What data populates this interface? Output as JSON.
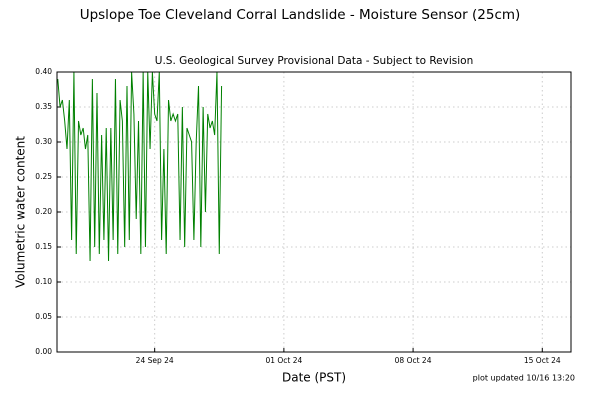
{
  "chart_data": {
    "type": "line",
    "title": "Upslope Toe Cleveland Corral Landslide - Moisture Sensor (25cm)",
    "subtitle": "U.S. Geological Survey Provisional Data - Subject to Revision",
    "xlabel": "Date (PST)",
    "ylabel": "Volumetric water content",
    "note": "plot updated 10/16 13:20",
    "grid": true,
    "xlim": [
      "2024-09-18T17:00",
      "2024-10-16T13:20"
    ],
    "xticks": [
      {
        "value": "2024-09-24",
        "label": "24 Sep 24"
      },
      {
        "value": "2024-10-01",
        "label": "01 Oct 24"
      },
      {
        "value": "2024-10-08",
        "label": "08 Oct 24"
      },
      {
        "value": "2024-10-15",
        "label": "15 Oct 24"
      }
    ],
    "ylim": [
      0,
      0.4
    ],
    "yticks": [
      {
        "value": 0,
        "label": "0.00"
      },
      {
        "value": 0.05,
        "label": "0.05"
      },
      {
        "value": 0.1,
        "label": "0.10"
      },
      {
        "value": 0.15,
        "label": "0.15"
      },
      {
        "value": 0.2,
        "label": "0.20"
      },
      {
        "value": 0.25,
        "label": "0.25"
      },
      {
        "value": 0.3,
        "label": "0.30"
      },
      {
        "value": 0.35,
        "label": "0.35"
      },
      {
        "value": 0.4,
        "label": "0.40"
      }
    ],
    "x": [
      "2024-09-18T18:00",
      "2024-09-18T21:00",
      "2024-09-19T00:00",
      "2024-09-19T03:00",
      "2024-09-19T06:00",
      "2024-09-19T09:00",
      "2024-09-19T12:00",
      "2024-09-19T15:00",
      "2024-09-19T18:00",
      "2024-09-19T21:00",
      "2024-09-20T00:00",
      "2024-09-20T03:00",
      "2024-09-20T06:00",
      "2024-09-20T09:00",
      "2024-09-20T12:00",
      "2024-09-20T15:00",
      "2024-09-20T18:00",
      "2024-09-20T21:00",
      "2024-09-21T00:00",
      "2024-09-21T03:00",
      "2024-09-21T06:00",
      "2024-09-21T09:00",
      "2024-09-21T12:00",
      "2024-09-21T15:00",
      "2024-09-21T18:00",
      "2024-09-21T21:00",
      "2024-09-22T00:00",
      "2024-09-22T03:00",
      "2024-09-22T06:00",
      "2024-09-22T09:00",
      "2024-09-22T12:00",
      "2024-09-22T15:00",
      "2024-09-22T18:00",
      "2024-09-22T21:00",
      "2024-09-23T00:00",
      "2024-09-23T03:00",
      "2024-09-23T06:00",
      "2024-09-23T09:00",
      "2024-09-23T12:00",
      "2024-09-23T15:00",
      "2024-09-23T18:00",
      "2024-09-23T21:00",
      "2024-09-24T00:00",
      "2024-09-24T03:00",
      "2024-09-24T06:00",
      "2024-09-24T09:00",
      "2024-09-24T12:00",
      "2024-09-24T15:00",
      "2024-09-24T18:00",
      "2024-09-24T21:00",
      "2024-09-25T00:00",
      "2024-09-25T03:00",
      "2024-09-25T06:00",
      "2024-09-25T09:00",
      "2024-09-25T12:00",
      "2024-09-25T15:00",
      "2024-09-25T18:00",
      "2024-09-25T21:00",
      "2024-09-26T00:00",
      "2024-09-26T03:00",
      "2024-09-26T06:00",
      "2024-09-26T09:00",
      "2024-09-26T12:00",
      "2024-09-26T15:00",
      "2024-09-26T18:00",
      "2024-09-26T21:00",
      "2024-09-27T00:00",
      "2024-09-27T03:00",
      "2024-09-27T06:00",
      "2024-09-27T09:00",
      "2024-09-27T12:00",
      "2024-09-27T15:00"
    ],
    "series": [
      {
        "name": "Moisture",
        "color": "#008000",
        "values": [
          0.39,
          0.35,
          0.36,
          0.33,
          0.29,
          0.36,
          0.16,
          0.4,
          0.14,
          0.33,
          0.31,
          0.32,
          0.29,
          0.31,
          0.13,
          0.39,
          0.15,
          0.37,
          0.14,
          0.31,
          0.16,
          0.32,
          0.13,
          0.32,
          0.16,
          0.39,
          0.14,
          0.36,
          0.33,
          0.15,
          0.38,
          0.16,
          0.4,
          0.34,
          0.19,
          0.33,
          0.14,
          0.4,
          0.15,
          0.4,
          0.29,
          0.4,
          0.34,
          0.33,
          0.4,
          0.16,
          0.29,
          0.14,
          0.36,
          0.33,
          0.34,
          0.33,
          0.34,
          0.16,
          0.35,
          0.15,
          0.32,
          0.31,
          0.3,
          0.16,
          0.3,
          0.38,
          0.15,
          0.35,
          0.2,
          0.34,
          0.32,
          0.33,
          0.31,
          0.4,
          0.14,
          0.38
        ]
      }
    ]
  }
}
